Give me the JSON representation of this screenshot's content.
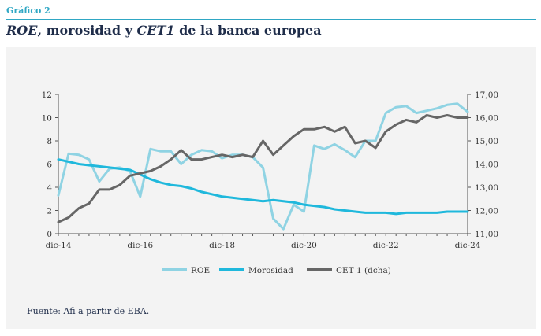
{
  "header": {
    "figure_label": "Gráfico 2",
    "title_part1": "ROE",
    "title_part2": ", morosidad y ",
    "title_part3": "CET1",
    "title_part4": " de la banca europea"
  },
  "source": "Fuente: Afi a partir de EBA.",
  "colors": {
    "accent": "#2fa7c4",
    "roe": "#8fd3e3",
    "morosidad": "#1fb8dc",
    "cet1": "#666666",
    "panel": "#f3f3f3"
  },
  "chart_data": {
    "type": "line",
    "title": "",
    "x": [
      "dic-14",
      "mar-15",
      "jun-15",
      "sep-15",
      "dic-15",
      "mar-16",
      "jun-16",
      "sep-16",
      "dic-16",
      "mar-17",
      "jun-17",
      "sep-17",
      "dic-17",
      "mar-18",
      "jun-18",
      "sep-18",
      "dic-18",
      "mar-19",
      "jun-19",
      "sep-19",
      "dic-19",
      "mar-20",
      "jun-20",
      "sep-20",
      "dic-20",
      "mar-21",
      "jun-21",
      "sep-21",
      "dic-21",
      "mar-22",
      "jun-22",
      "sep-22",
      "dic-22",
      "mar-23",
      "jun-23",
      "sep-23",
      "dic-23",
      "mar-24",
      "jun-24",
      "sep-24",
      "dic-24"
    ],
    "x_tick_labels": [
      "dic-14",
      "dic-16",
      "dic-18",
      "dic-20",
      "dic-22",
      "dic-24"
    ],
    "y_left": {
      "min": 0,
      "max": 12,
      "ticks": [
        0,
        2,
        4,
        6,
        8,
        10,
        12
      ]
    },
    "y_right": {
      "min": 11,
      "max": 17,
      "ticks": [
        "11,00",
        "12,00",
        "13,00",
        "14,00",
        "15,00",
        "16,00",
        "17,00"
      ],
      "tick_values": [
        11,
        12,
        13,
        14,
        15,
        16,
        17
      ]
    },
    "legend_position": "bottom",
    "grid": false,
    "series": [
      {
        "name": "ROE",
        "axis": "left",
        "values": [
          3.3,
          6.9,
          6.8,
          6.4,
          4.5,
          5.6,
          5.7,
          5.4,
          3.2,
          7.3,
          7.1,
          7.1,
          6.0,
          6.8,
          7.2,
          7.1,
          6.5,
          6.8,
          6.8,
          6.6,
          5.7,
          1.3,
          0.4,
          2.5,
          1.9,
          7.6,
          7.3,
          7.7,
          7.2,
          6.6,
          8.0,
          8.0,
          10.4,
          10.9,
          11.0,
          10.4,
          10.6,
          10.8,
          11.1,
          11.2,
          10.5
        ]
      },
      {
        "name": "Morosidad",
        "axis": "left",
        "values": [
          6.4,
          6.2,
          6.0,
          5.9,
          5.8,
          5.7,
          5.6,
          5.5,
          5.1,
          4.7,
          4.4,
          4.2,
          4.1,
          3.9,
          3.6,
          3.4,
          3.2,
          3.1,
          3.0,
          2.9,
          2.8,
          2.9,
          2.8,
          2.7,
          2.5,
          2.4,
          2.3,
          2.1,
          2.0,
          1.9,
          1.8,
          1.8,
          1.8,
          1.7,
          1.8,
          1.8,
          1.8,
          1.8,
          1.9,
          1.9,
          1.9
        ]
      },
      {
        "name": "CET 1 (dcha)",
        "axis": "right",
        "values": [
          11.5,
          11.7,
          12.1,
          12.3,
          12.9,
          12.9,
          13.1,
          13.5,
          13.6,
          13.7,
          13.9,
          14.2,
          14.6,
          14.2,
          14.2,
          14.3,
          14.4,
          14.3,
          14.4,
          14.3,
          15.0,
          14.4,
          14.8,
          15.2,
          15.5,
          15.5,
          15.6,
          15.4,
          15.6,
          14.9,
          15.0,
          14.7,
          15.4,
          15.7,
          15.9,
          15.8,
          16.1,
          16.0,
          16.1,
          16.0,
          16.0
        ]
      }
    ]
  }
}
